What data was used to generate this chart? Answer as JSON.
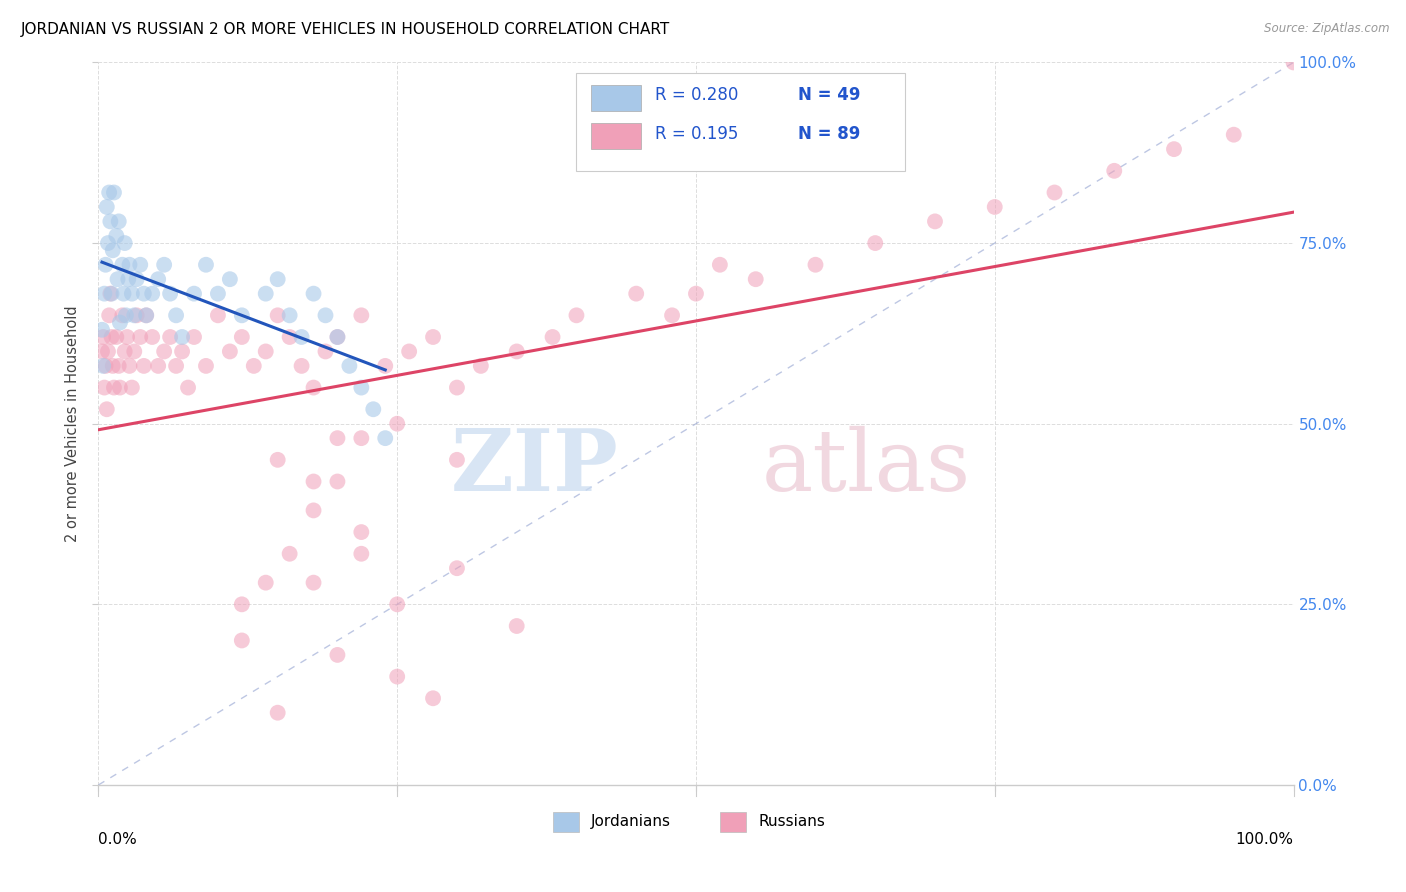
{
  "title": "JORDANIAN VS RUSSIAN 2 OR MORE VEHICLES IN HOUSEHOLD CORRELATION CHART",
  "source": "Source: ZipAtlas.com",
  "ylabel": "2 or more Vehicles in Household",
  "legend_blue_r": "R = 0.280",
  "legend_blue_n": "N = 49",
  "legend_pink_r": "R = 0.195",
  "legend_pink_n": "N = 89",
  "legend_blue_label": "Jordanians",
  "legend_pink_label": "Russians",
  "blue_color": "#a8c8e8",
  "pink_color": "#f0a0b8",
  "blue_line_color": "#2255bb",
  "pink_line_color": "#dd4466",
  "diag_color": "#8899cc",
  "legend_text_color": "#2255cc",
  "grid_color": "#dddddd",
  "axis_color": "#cccccc",
  "right_tick_color": "#4488ee",
  "watermark_zip": "ZIP",
  "watermark_atlas": "atlas",
  "watermark_zip_color": "#c8daf0",
  "watermark_atlas_color": "#ecc8d4",
  "r_blue": 0.28,
  "n_blue": 49,
  "r_pink": 0.195,
  "n_pink": 89,
  "jordanian_x": [
    0.3,
    0.4,
    0.5,
    0.6,
    0.7,
    0.8,
    0.9,
    1.0,
    1.1,
    1.2,
    1.3,
    1.5,
    1.6,
    1.7,
    1.8,
    2.0,
    2.1,
    2.2,
    2.3,
    2.5,
    2.6,
    2.8,
    3.0,
    3.2,
    3.5,
    3.8,
    4.0,
    4.5,
    5.0,
    5.5,
    6.0,
    6.5,
    7.0,
    8.0,
    9.0,
    10.0,
    11.0,
    12.0,
    14.0,
    15.0,
    16.0,
    17.0,
    18.0,
    19.0,
    20.0,
    21.0,
    22.0,
    23.0,
    24.0
  ],
  "jordanian_y": [
    63.0,
    58.0,
    68.0,
    72.0,
    80.0,
    75.0,
    82.0,
    78.0,
    68.0,
    74.0,
    82.0,
    76.0,
    70.0,
    78.0,
    64.0,
    72.0,
    68.0,
    75.0,
    65.0,
    70.0,
    72.0,
    68.0,
    65.0,
    70.0,
    72.0,
    68.0,
    65.0,
    68.0,
    70.0,
    72.0,
    68.0,
    65.0,
    62.0,
    68.0,
    72.0,
    68.0,
    70.0,
    65.0,
    68.0,
    70.0,
    65.0,
    62.0,
    68.0,
    65.0,
    62.0,
    58.0,
    55.0,
    52.0,
    48.0
  ],
  "russian_x": [
    0.3,
    0.4,
    0.5,
    0.6,
    0.7,
    0.8,
    0.9,
    1.0,
    1.1,
    1.2,
    1.3,
    1.5,
    1.7,
    1.8,
    2.0,
    2.2,
    2.4,
    2.6,
    2.8,
    3.0,
    3.2,
    3.5,
    3.8,
    4.0,
    4.5,
    5.0,
    5.5,
    6.0,
    6.5,
    7.0,
    7.5,
    8.0,
    9.0,
    10.0,
    11.0,
    12.0,
    13.0,
    14.0,
    15.0,
    16.0,
    17.0,
    18.0,
    19.0,
    20.0,
    22.0,
    24.0,
    26.0,
    28.0,
    30.0,
    32.0,
    35.0,
    38.0,
    40.0,
    45.0,
    48.0,
    50.0,
    52.0,
    55.0,
    60.0,
    65.0,
    70.0,
    75.0,
    80.0,
    85.0,
    90.0,
    95.0,
    100.0,
    18.0,
    22.0,
    25.0,
    30.0,
    35.0,
    20.0,
    25.0,
    28.0,
    15.0,
    12.0,
    20.0,
    18.0,
    22.0,
    16.0,
    14.0,
    12.0,
    25.0,
    30.0,
    20.0,
    15.0,
    18.0,
    22.0
  ],
  "russian_y": [
    60.0,
    62.0,
    55.0,
    58.0,
    52.0,
    60.0,
    65.0,
    68.0,
    62.0,
    58.0,
    55.0,
    62.0,
    58.0,
    55.0,
    65.0,
    60.0,
    62.0,
    58.0,
    55.0,
    60.0,
    65.0,
    62.0,
    58.0,
    65.0,
    62.0,
    58.0,
    60.0,
    62.0,
    58.0,
    60.0,
    55.0,
    62.0,
    58.0,
    65.0,
    60.0,
    62.0,
    58.0,
    60.0,
    65.0,
    62.0,
    58.0,
    55.0,
    60.0,
    62.0,
    65.0,
    58.0,
    60.0,
    62.0,
    55.0,
    58.0,
    60.0,
    62.0,
    65.0,
    68.0,
    65.0,
    68.0,
    72.0,
    70.0,
    72.0,
    75.0,
    78.0,
    80.0,
    82.0,
    85.0,
    88.0,
    90.0,
    100.0,
    28.0,
    32.0,
    25.0,
    30.0,
    22.0,
    18.0,
    15.0,
    12.0,
    10.0,
    20.0,
    42.0,
    38.0,
    35.0,
    32.0,
    28.0,
    25.0,
    50.0,
    45.0,
    48.0,
    45.0,
    42.0,
    48.0
  ]
}
